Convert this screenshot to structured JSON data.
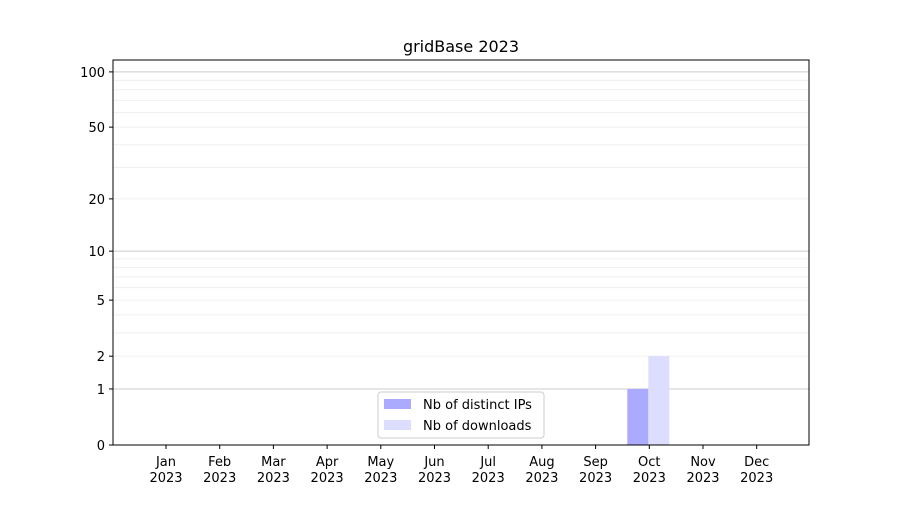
{
  "chart_data": {
    "type": "bar",
    "title": "gridBase 2023",
    "xlabel": "",
    "ylabel": "",
    "yscale": "log(1+y)",
    "ylim": [
      0,
      116
    ],
    "yticks": [
      0,
      1,
      2,
      5,
      10,
      20,
      50,
      100
    ],
    "ytick_labels": [
      "0",
      "1",
      "2",
      "5",
      "10",
      "20",
      "50",
      "100"
    ],
    "categories": [
      "Jan\n2023",
      "Feb\n2023",
      "Mar\n2023",
      "Apr\n2023",
      "May\n2023",
      "Jun\n2023",
      "Jul\n2023",
      "Aug\n2023",
      "Sep\n2023",
      "Oct\n2023",
      "Nov\n2023",
      "Dec\n2023"
    ],
    "grid": true,
    "legend_position": "lower-center",
    "series": [
      {
        "name": "Nb of distinct IPs",
        "color": "#aaaaff",
        "values": [
          0,
          0,
          0,
          0,
          0,
          0,
          0,
          0,
          0,
          1,
          0,
          0
        ]
      },
      {
        "name": "Nb of downloads",
        "color": "#ddddff",
        "values": [
          0,
          0,
          0,
          0,
          0,
          0,
          0,
          0,
          0,
          2,
          0,
          0
        ]
      }
    ]
  }
}
